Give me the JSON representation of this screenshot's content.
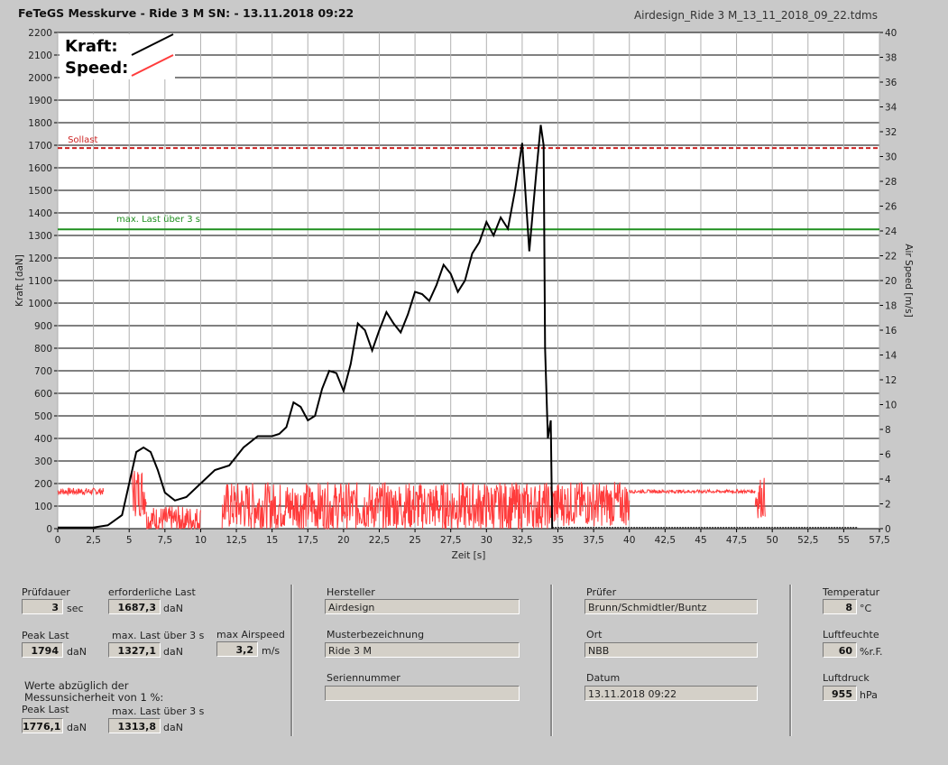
{
  "header": {
    "title": "FeTeGS Messkurve - Ride 3 M  SN:  - 13.11.2018 09:22",
    "filename": "Airdesign_Ride 3 M_13_11_2018_09_22.tdms"
  },
  "colors": {
    "kraft": "#000000",
    "speed": "#ff3b3b",
    "sollast": "#cc2222",
    "maxlast": "#1f8f1f"
  },
  "chart_data": {
    "type": "line",
    "xlabel": "Zeit [s]",
    "ylabel": "Kraft [daN]",
    "y2label": "Air Speed [m/s]",
    "xlim": [
      0,
      57.5
    ],
    "ylim": [
      0,
      2200
    ],
    "y2lim": [
      0,
      40
    ],
    "x_ticks": [
      "0",
      "2,5",
      "5",
      "7,5",
      "10",
      "12,5",
      "15",
      "17,5",
      "20",
      "22,5",
      "25",
      "27,5",
      "30",
      "32,5",
      "35",
      "37,5",
      "40",
      "42,5",
      "45",
      "47,5",
      "50",
      "52,5",
      "55",
      "57,5"
    ],
    "y_ticks": [
      "0",
      "100",
      "200",
      "300",
      "400",
      "500",
      "600",
      "700",
      "800",
      "900",
      "1000",
      "1100",
      "1200",
      "1300",
      "1400",
      "1500",
      "1600",
      "1700",
      "1800",
      "1900",
      "2000",
      "2100",
      "2200"
    ],
    "y2_ticks": [
      "0",
      "2",
      "4",
      "6",
      "8",
      "10",
      "12",
      "14",
      "16",
      "18",
      "20",
      "22",
      "24",
      "26",
      "28",
      "30",
      "32",
      "34",
      "36",
      "38",
      "40"
    ],
    "legend": [
      {
        "name": "Kraft:"
      },
      {
        "name": "Speed:"
      }
    ],
    "reference_lines": [
      {
        "label": "Sollast",
        "y": 1687.3
      },
      {
        "label": "max. Last über  3 s",
        "y": 1327.1
      }
    ],
    "series": [
      {
        "name": "Kraft",
        "axis": "left",
        "points": [
          [
            0,
            5
          ],
          [
            2.5,
            5
          ],
          [
            3.5,
            15
          ],
          [
            4.5,
            60
          ],
          [
            5,
            200
          ],
          [
            5.5,
            340
          ],
          [
            6,
            360
          ],
          [
            6.5,
            340
          ],
          [
            7,
            260
          ],
          [
            7.5,
            160
          ],
          [
            8.2,
            125
          ],
          [
            9,
            140
          ],
          [
            10,
            200
          ],
          [
            11,
            260
          ],
          [
            12,
            280
          ],
          [
            13,
            360
          ],
          [
            14,
            410
          ],
          [
            15,
            410
          ],
          [
            15.5,
            420
          ],
          [
            16,
            450
          ],
          [
            16.5,
            560
          ],
          [
            17,
            540
          ],
          [
            17.5,
            480
          ],
          [
            18,
            500
          ],
          [
            18.5,
            620
          ],
          [
            19,
            700
          ],
          [
            19.5,
            690
          ],
          [
            20,
            610
          ],
          [
            20.5,
            730
          ],
          [
            21,
            910
          ],
          [
            21.5,
            880
          ],
          [
            22,
            790
          ],
          [
            22.5,
            880
          ],
          [
            23,
            960
          ],
          [
            23.5,
            910
          ],
          [
            24,
            870
          ],
          [
            24.5,
            950
          ],
          [
            25,
            1050
          ],
          [
            25.5,
            1040
          ],
          [
            26,
            1010
          ],
          [
            26.5,
            1080
          ],
          [
            27,
            1170
          ],
          [
            27.5,
            1130
          ],
          [
            28,
            1050
          ],
          [
            28.5,
            1100
          ],
          [
            29,
            1220
          ],
          [
            29.5,
            1270
          ],
          [
            30,
            1360
          ],
          [
            30.5,
            1300
          ],
          [
            31,
            1380
          ],
          [
            31.5,
            1330
          ],
          [
            32,
            1500
          ],
          [
            32.5,
            1710
          ],
          [
            33,
            1230
          ],
          [
            33.5,
            1590
          ],
          [
            33.8,
            1790
          ],
          [
            34,
            1700
          ],
          [
            34.1,
            800
          ],
          [
            34.3,
            400
          ],
          [
            34.5,
            480
          ],
          [
            34.6,
            0
          ]
        ]
      },
      {
        "name": "Speed",
        "axis": "right",
        "segments": [
          {
            "x": [
              0,
              3.2
            ],
            "y": 3.0,
            "noise": 0.2
          },
          {
            "x": [
              5.2,
              6.2
            ],
            "y": 3.0,
            "noise": 1.5
          },
          {
            "x": [
              6.2,
              10
            ],
            "y": 0.7,
            "noise": 0.8
          },
          {
            "x": [
              11.5,
              34.5
            ],
            "y": 1.8,
            "noise": 1.4
          },
          {
            "x": [
              34.5,
              40
            ],
            "y": 2.0,
            "noise": 1.3
          },
          {
            "x": [
              40,
              48.8
            ],
            "y": 3.0,
            "noise": 0.1
          },
          {
            "x": [
              48.8,
              49.5
            ],
            "y": 2.5,
            "noise": 1.2
          }
        ]
      }
    ]
  },
  "panel": {
    "pruefdauer": {
      "label": "Prüfdauer",
      "value": "3",
      "unit": "sec"
    },
    "erforderliche_last": {
      "label": "erforderliche Last",
      "value": "1687,3",
      "unit": "daN"
    },
    "peak_last": {
      "label": "Peak Last",
      "value": "1794",
      "unit": "daN"
    },
    "max_last_3s": {
      "label": "max. Last über  3 s",
      "value": "1327,1",
      "unit": "daN"
    },
    "max_airspeed": {
      "label": "max Airspeed",
      "value": "3,2",
      "unit": "m/s"
    },
    "werte_note": "Werte abzüglich der Messunsicherheit von 1  %:",
    "peak_last_adj": {
      "label": "Peak Last",
      "value": "1776,1",
      "unit": "daN"
    },
    "max_last_3s_adj": {
      "label": "max. Last über  3 s",
      "value": "1313,8",
      "unit": "daN"
    },
    "hersteller": {
      "label": "Hersteller",
      "value": "Airdesign"
    },
    "musterbezeichnung": {
      "label": "Musterbezeichnung",
      "value": "Ride 3 M"
    },
    "seriennummer": {
      "label": "Seriennummer",
      "value": ""
    },
    "pruefer": {
      "label": "Prüfer",
      "value": "Brunn/Schmidtler/Buntz"
    },
    "ort": {
      "label": "Ort",
      "value": "NBB"
    },
    "datum": {
      "label": "Datum",
      "value": "13.11.2018 09:22"
    },
    "temperatur": {
      "label": "Temperatur",
      "value": "8",
      "unit": "°C"
    },
    "luftfeuchte": {
      "label": "Luftfeuchte",
      "value": "60",
      "unit": "%r.F."
    },
    "luftdruck": {
      "label": "Luftdruck",
      "value": "955",
      "unit": "hPa"
    }
  }
}
